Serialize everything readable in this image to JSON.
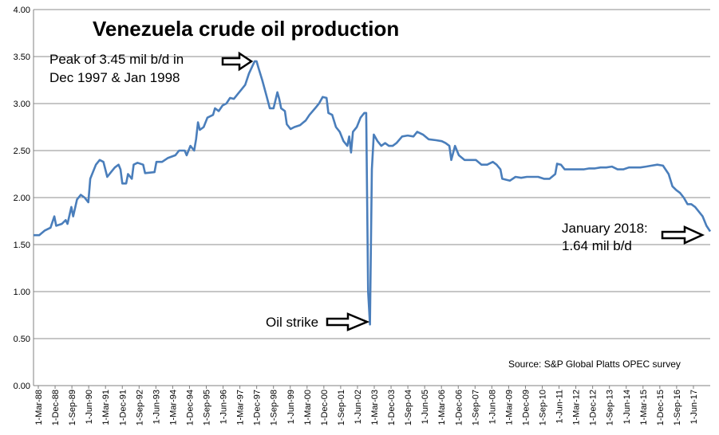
{
  "chart_data": {
    "type": "line",
    "title": "Venezuela crude oil production",
    "ylim": [
      0,
      4.0
    ],
    "yticks": [
      "0.00",
      "0.50",
      "1.00",
      "1.50",
      "2.00",
      "2.50",
      "3.00",
      "3.50",
      "4.00"
    ],
    "xticks": [
      "1-Mar-88",
      "1-Dec-88",
      "1-Sep-89",
      "1-Jun-90",
      "1-Mar-91",
      "1-Dec-91",
      "1-Sep-92",
      "1-Jun-93",
      "1-Mar-94",
      "1-Dec-94",
      "1-Sep-95",
      "1-Jun-96",
      "1-Mar-97",
      "1-Dec-97",
      "1-Sep-98",
      "1-Jun-99",
      "1-Mar-00",
      "1-Dec-00",
      "1-Sep-01",
      "1-Jun-02",
      "1-Mar-03",
      "1-Dec-03",
      "1-Sep-04",
      "1-Jun-05",
      "1-Mar-06",
      "1-Dec-06",
      "1-Sep-07",
      "1-Jun-08",
      "1-Mar-09",
      "1-Dec-09",
      "1-Sep-10",
      "1-Jun-11",
      "1-Mar-12",
      "1-Dec-12",
      "1-Sep-13",
      "1-Jun-14",
      "1-Mar-15",
      "1-Dec-15",
      "1-Sep-16",
      "1-Jun-17"
    ],
    "grid": true,
    "line_color": "#4a7ebb",
    "series": [
      {
        "points": [
          [
            "1988-03",
            1.6
          ],
          [
            "1988-06",
            1.6
          ],
          [
            "1988-09",
            1.65
          ],
          [
            "1988-12",
            1.68
          ],
          [
            "1989-02",
            1.8
          ],
          [
            "1989-03",
            1.7
          ],
          [
            "1989-06",
            1.72
          ],
          [
            "1989-08",
            1.76
          ],
          [
            "1989-09",
            1.72
          ],
          [
            "1989-11",
            1.9
          ],
          [
            "1989-12",
            1.8
          ],
          [
            "1990-02",
            1.98
          ],
          [
            "1990-04",
            2.03
          ],
          [
            "1990-06",
            2.0
          ],
          [
            "1990-08",
            1.95
          ],
          [
            "1990-09",
            2.2
          ],
          [
            "1990-12",
            2.35
          ],
          [
            "1991-02",
            2.4
          ],
          [
            "1991-04",
            2.38
          ],
          [
            "1991-06",
            2.22
          ],
          [
            "1991-08",
            2.27
          ],
          [
            "1991-10",
            2.32
          ],
          [
            "1991-12",
            2.35
          ],
          [
            "1992-01",
            2.3
          ],
          [
            "1992-02",
            2.15
          ],
          [
            "1992-04",
            2.15
          ],
          [
            "1992-05",
            2.25
          ],
          [
            "1992-07",
            2.2
          ],
          [
            "1992-08",
            2.35
          ],
          [
            "1992-10",
            2.37
          ],
          [
            "1993-01",
            2.35
          ],
          [
            "1993-02",
            2.26
          ],
          [
            "1993-07",
            2.27
          ],
          [
            "1993-08",
            2.38
          ],
          [
            "1993-11",
            2.38
          ],
          [
            "1994-02",
            2.42
          ],
          [
            "1994-06",
            2.45
          ],
          [
            "1994-08",
            2.5
          ],
          [
            "1994-11",
            2.5
          ],
          [
            "1994-12",
            2.45
          ],
          [
            "1995-02",
            2.55
          ],
          [
            "1995-04",
            2.5
          ],
          [
            "1995-05",
            2.62
          ],
          [
            "1995-06",
            2.8
          ],
          [
            "1995-07",
            2.72
          ],
          [
            "1995-09",
            2.75
          ],
          [
            "1995-11",
            2.85
          ],
          [
            "1996-02",
            2.88
          ],
          [
            "1996-03",
            2.95
          ],
          [
            "1996-05",
            2.92
          ],
          [
            "1996-07",
            2.98
          ],
          [
            "1996-09",
            3.0
          ],
          [
            "1996-11",
            3.06
          ],
          [
            "1997-01",
            3.05
          ],
          [
            "1997-03",
            3.1
          ],
          [
            "1997-05",
            3.15
          ],
          [
            "1997-07",
            3.2
          ],
          [
            "1997-09",
            3.32
          ],
          [
            "1997-12",
            3.45
          ],
          [
            "1998-01",
            3.45
          ],
          [
            "1998-02",
            3.38
          ],
          [
            "1998-04",
            3.25
          ],
          [
            "1998-06",
            3.1
          ],
          [
            "1998-08",
            2.95
          ],
          [
            "1998-10",
            2.95
          ],
          [
            "1998-12",
            3.12
          ],
          [
            "1999-01",
            3.05
          ],
          [
            "1999-02",
            2.95
          ],
          [
            "1999-04",
            2.92
          ],
          [
            "1999-05",
            2.78
          ],
          [
            "1999-07",
            2.73
          ],
          [
            "1999-09",
            2.75
          ],
          [
            "1999-12",
            2.77
          ],
          [
            "2000-03",
            2.82
          ],
          [
            "2000-05",
            2.88
          ],
          [
            "2000-08",
            2.95
          ],
          [
            "2000-10",
            3.0
          ],
          [
            "2000-12",
            3.07
          ],
          [
            "2001-02",
            3.06
          ],
          [
            "2001-03",
            2.9
          ],
          [
            "2001-05",
            2.88
          ],
          [
            "2001-07",
            2.75
          ],
          [
            "2001-09",
            2.7
          ],
          [
            "2001-11",
            2.6
          ],
          [
            "2002-01",
            2.55
          ],
          [
            "2002-02",
            2.65
          ],
          [
            "2002-03",
            2.48
          ],
          [
            "2002-04",
            2.7
          ],
          [
            "2002-06",
            2.75
          ],
          [
            "2002-08",
            2.85
          ],
          [
            "2002-10",
            2.9
          ],
          [
            "2002-11",
            2.9
          ],
          [
            "2002-12",
            1.0
          ],
          [
            "2003-01",
            0.65
          ],
          [
            "2003-02",
            2.3
          ],
          [
            "2003-03",
            2.67
          ],
          [
            "2003-05",
            2.6
          ],
          [
            "2003-07",
            2.55
          ],
          [
            "2003-09",
            2.58
          ],
          [
            "2003-11",
            2.55
          ],
          [
            "2004-01",
            2.55
          ],
          [
            "2004-03",
            2.58
          ],
          [
            "2004-06",
            2.65
          ],
          [
            "2004-09",
            2.66
          ],
          [
            "2004-12",
            2.65
          ],
          [
            "2005-02",
            2.7
          ],
          [
            "2005-05",
            2.67
          ],
          [
            "2005-08",
            2.62
          ],
          [
            "2005-12",
            2.61
          ],
          [
            "2006-03",
            2.6
          ],
          [
            "2006-05",
            2.58
          ],
          [
            "2006-07",
            2.55
          ],
          [
            "2006-08",
            2.4
          ],
          [
            "2006-10",
            2.55
          ],
          [
            "2006-12",
            2.45
          ],
          [
            "2007-03",
            2.4
          ],
          [
            "2007-06",
            2.4
          ],
          [
            "2007-09",
            2.4
          ],
          [
            "2007-12",
            2.35
          ],
          [
            "2008-03",
            2.35
          ],
          [
            "2008-06",
            2.38
          ],
          [
            "2008-08",
            2.35
          ],
          [
            "2008-10",
            2.3
          ],
          [
            "2008-11",
            2.2
          ],
          [
            "2009-03",
            2.18
          ],
          [
            "2009-06",
            2.22
          ],
          [
            "2009-09",
            2.21
          ],
          [
            "2009-12",
            2.22
          ],
          [
            "2010-03",
            2.22
          ],
          [
            "2010-06",
            2.22
          ],
          [
            "2010-09",
            2.2
          ],
          [
            "2010-12",
            2.2
          ],
          [
            "2011-03",
            2.25
          ],
          [
            "2011-04",
            2.36
          ],
          [
            "2011-06",
            2.35
          ],
          [
            "2011-08",
            2.3
          ],
          [
            "2011-12",
            2.3
          ],
          [
            "2012-03",
            2.3
          ],
          [
            "2012-06",
            2.3
          ],
          [
            "2012-09",
            2.31
          ],
          [
            "2012-12",
            2.31
          ],
          [
            "2013-03",
            2.32
          ],
          [
            "2013-06",
            2.32
          ],
          [
            "2013-09",
            2.33
          ],
          [
            "2013-12",
            2.3
          ],
          [
            "2014-03",
            2.3
          ],
          [
            "2014-06",
            2.32
          ],
          [
            "2014-09",
            2.32
          ],
          [
            "2014-12",
            2.32
          ],
          [
            "2015-03",
            2.33
          ],
          [
            "2015-06",
            2.34
          ],
          [
            "2015-09",
            2.35
          ],
          [
            "2015-12",
            2.34
          ],
          [
            "2016-03",
            2.25
          ],
          [
            "2016-05",
            2.12
          ],
          [
            "2016-07",
            2.08
          ],
          [
            "2016-09",
            2.05
          ],
          [
            "2016-11",
            2.0
          ],
          [
            "2017-01",
            1.93
          ],
          [
            "2017-03",
            1.93
          ],
          [
            "2017-05",
            1.9
          ],
          [
            "2017-07",
            1.85
          ],
          [
            "2017-09",
            1.8
          ],
          [
            "2017-11",
            1.7
          ],
          [
            "2018-01",
            1.64
          ]
        ]
      }
    ],
    "annotations": [
      {
        "lines": [
          "Peak of 3.45 mil b/d in",
          "Dec 1997 & Jan 1998"
        ]
      },
      {
        "lines": [
          "Oil strike"
        ]
      },
      {
        "lines": [
          "January 2018:",
          "1.64 mil b/d"
        ]
      }
    ],
    "source": "Source: S&P Global Platts OPEC survey"
  }
}
